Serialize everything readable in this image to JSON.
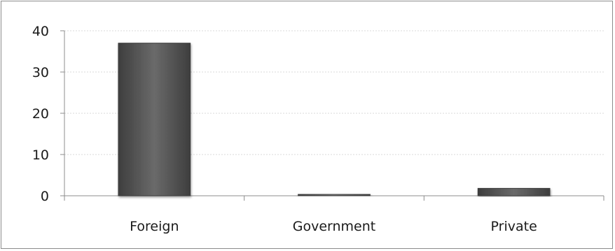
{
  "chart_data": {
    "type": "bar",
    "title": "",
    "xlabel": "",
    "ylabel": "",
    "categories": [
      "Foreign",
      "Government",
      "Private"
    ],
    "values": [
      37,
      0.4,
      1.8
    ],
    "ylim": [
      0,
      40
    ],
    "yticks": [
      0,
      10,
      20,
      30,
      40
    ],
    "grid": true,
    "legend": "none",
    "colors": {
      "bar": "#5a5a5a",
      "bar_dark": "#3a3a3a",
      "gridline": "#d9d9d9",
      "axis": "#8c8c8c"
    }
  }
}
